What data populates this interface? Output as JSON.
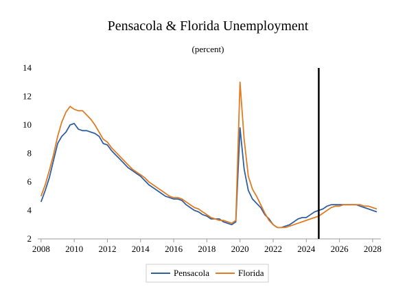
{
  "chart_data": {
    "type": "line",
    "title": "Pensacola & Florida Unemployment",
    "subtitle": "(percent)",
    "xlabel": "",
    "ylabel": "",
    "xlim": [
      2007.8,
      2028.5
    ],
    "ylim": [
      2,
      14
    ],
    "yticks": [
      2,
      4,
      6,
      8,
      10,
      12,
      14
    ],
    "xticks": [
      2008,
      2010,
      2012,
      2014,
      2016,
      2018,
      2020,
      2022,
      2024,
      2026,
      2028
    ],
    "grid": false,
    "legend_position": "bottom",
    "forecast_marker_x": 2024.75,
    "series": [
      {
        "name": "Pensacola",
        "color": "#2e5fa1",
        "x": [
          2008.0,
          2008.25,
          2008.5,
          2008.75,
          2009.0,
          2009.25,
          2009.5,
          2009.75,
          2010.0,
          2010.25,
          2010.5,
          2010.75,
          2011.0,
          2011.25,
          2011.5,
          2011.75,
          2012.0,
          2012.25,
          2012.5,
          2012.75,
          2013.0,
          2013.25,
          2013.5,
          2013.75,
          2014.0,
          2014.25,
          2014.5,
          2014.75,
          2015.0,
          2015.25,
          2015.5,
          2015.75,
          2016.0,
          2016.25,
          2016.5,
          2016.75,
          2017.0,
          2017.25,
          2017.5,
          2017.75,
          2018.0,
          2018.25,
          2018.5,
          2018.75,
          2019.0,
          2019.25,
          2019.5,
          2019.75,
          2020.0,
          2020.25,
          2020.5,
          2020.75,
          2021.0,
          2021.25,
          2021.5,
          2021.75,
          2022.0,
          2022.25,
          2022.5,
          2022.75,
          2023.0,
          2023.25,
          2023.5,
          2023.75,
          2024.0,
          2024.25,
          2024.5,
          2024.75,
          2025.0,
          2025.25,
          2025.5,
          2025.75,
          2026.0,
          2026.25,
          2026.5,
          2026.75,
          2027.0,
          2027.25,
          2027.5,
          2027.75,
          2028.0,
          2028.25
        ],
        "values": [
          4.6,
          5.4,
          6.3,
          7.5,
          8.7,
          9.2,
          9.5,
          10.0,
          10.1,
          9.7,
          9.6,
          9.6,
          9.5,
          9.4,
          9.2,
          8.7,
          8.6,
          8.2,
          7.9,
          7.6,
          7.3,
          7.0,
          6.8,
          6.6,
          6.4,
          6.1,
          5.8,
          5.6,
          5.4,
          5.2,
          5.0,
          4.9,
          4.8,
          4.8,
          4.7,
          4.4,
          4.2,
          4.0,
          3.9,
          3.7,
          3.6,
          3.4,
          3.4,
          3.4,
          3.2,
          3.1,
          3.0,
          3.2,
          9.8,
          6.9,
          5.4,
          4.8,
          4.5,
          4.2,
          3.7,
          3.4,
          3.0,
          2.8,
          2.8,
          2.9,
          3.0,
          3.2,
          3.4,
          3.5,
          3.5,
          3.7,
          3.9,
          4.0,
          4.1,
          4.3,
          4.4,
          4.4,
          4.4,
          4.4,
          4.4,
          4.4,
          4.4,
          4.3,
          4.2,
          4.1,
          4.0,
          3.9
        ]
      },
      {
        "name": "Florida",
        "color": "#e07b22",
        "x": [
          2008.0,
          2008.25,
          2008.5,
          2008.75,
          2009.0,
          2009.25,
          2009.5,
          2009.75,
          2010.0,
          2010.25,
          2010.5,
          2010.75,
          2011.0,
          2011.25,
          2011.5,
          2011.75,
          2012.0,
          2012.25,
          2012.5,
          2012.75,
          2013.0,
          2013.25,
          2013.5,
          2013.75,
          2014.0,
          2014.25,
          2014.5,
          2014.75,
          2015.0,
          2015.25,
          2015.5,
          2015.75,
          2016.0,
          2016.25,
          2016.5,
          2016.75,
          2017.0,
          2017.25,
          2017.5,
          2017.75,
          2018.0,
          2018.25,
          2018.5,
          2018.75,
          2019.0,
          2019.25,
          2019.5,
          2019.75,
          2020.0,
          2020.25,
          2020.5,
          2020.75,
          2021.0,
          2021.25,
          2021.5,
          2021.75,
          2022.0,
          2022.25,
          2022.5,
          2022.75,
          2023.0,
          2023.25,
          2023.5,
          2023.75,
          2024.0,
          2024.25,
          2024.5,
          2024.75,
          2025.0,
          2025.25,
          2025.5,
          2025.75,
          2026.0,
          2026.25,
          2026.5,
          2026.75,
          2027.0,
          2027.25,
          2027.5,
          2027.75,
          2028.0,
          2028.25
        ],
        "values": [
          5.0,
          5.8,
          6.8,
          7.9,
          9.2,
          10.2,
          10.9,
          11.3,
          11.1,
          11.0,
          11.0,
          10.7,
          10.4,
          10.0,
          9.5,
          9.0,
          8.8,
          8.4,
          8.1,
          7.8,
          7.5,
          7.2,
          6.9,
          6.7,
          6.5,
          6.3,
          6.0,
          5.8,
          5.6,
          5.4,
          5.2,
          5.0,
          4.9,
          4.9,
          4.8,
          4.6,
          4.4,
          4.2,
          4.1,
          3.9,
          3.7,
          3.5,
          3.4,
          3.3,
          3.3,
          3.2,
          3.1,
          3.3,
          13.0,
          9.0,
          6.4,
          5.5,
          5.0,
          4.4,
          3.8,
          3.3,
          3.0,
          2.8,
          2.8,
          2.8,
          2.9,
          3.0,
          3.1,
          3.2,
          3.3,
          3.4,
          3.5,
          3.6,
          3.8,
          4.0,
          4.2,
          4.3,
          4.3,
          4.4,
          4.4,
          4.4,
          4.4,
          4.4,
          4.3,
          4.3,
          4.2,
          4.1
        ]
      }
    ]
  }
}
